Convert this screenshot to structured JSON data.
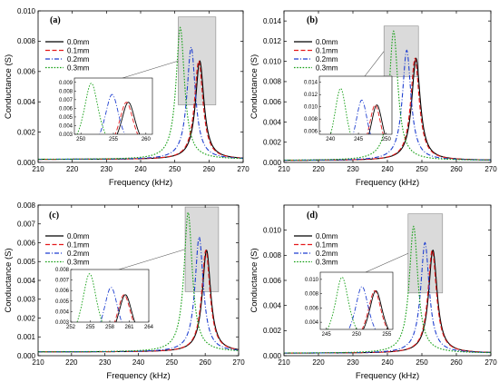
{
  "figure": {
    "xlabel": "Frequency (kHz)",
    "ylabel": "Conductance (S)",
    "colors": {
      "0.0mm": "#000000",
      "0.1mm": "#e41a1c",
      "0.2mm": "#1f3fd0",
      "0.3mm": "#16a016",
      "zoom_box": "#d3d3d3"
    }
  },
  "chart_data": [
    {
      "type": "line",
      "panel_label": "(a)",
      "xlabel": "Frequency (kHz)",
      "ylabel": "Conductance (S)",
      "xlim": [
        210,
        270
      ],
      "ylim": [
        0,
        0.01
      ],
      "xticks": [
        210,
        220,
        230,
        240,
        250,
        260,
        270
      ],
      "yticks": [
        0.0,
        0.002,
        0.004,
        0.006,
        0.008,
        0.01
      ],
      "ytick_labels": [
        "0.000",
        "0.002",
        "0.004",
        "0.006",
        "0.008",
        "0.010"
      ],
      "series": [
        {
          "name": "0.0mm",
          "style": "solid",
          "peak_x": 257.3,
          "peak_y": 0.0067,
          "width": 1.5,
          "base": 0.0002
        },
        {
          "name": "0.1mm",
          "style": "dash",
          "peak_x": 257.0,
          "peak_y": 0.0067,
          "width": 1.5,
          "base": 0.0002
        },
        {
          "name": "0.2mm",
          "style": "dashdot",
          "peak_x": 254.8,
          "peak_y": 0.0076,
          "width": 1.5,
          "base": 0.0002
        },
        {
          "name": "0.3mm",
          "style": "dot",
          "peak_x": 251.6,
          "peak_y": 0.0089,
          "width": 1.5,
          "base": 0.0002
        }
      ],
      "zoom_region": {
        "x": [
          251,
          262
        ],
        "y": [
          0.0038,
          0.0096
        ]
      },
      "inset": {
        "xlim": [
          249,
          261
        ],
        "ylim": [
          0.003,
          0.0095
        ],
        "xticks": [
          250,
          255,
          260
        ],
        "yticks": [
          0.003,
          0.004,
          0.005,
          0.006,
          0.007,
          0.008,
          0.009
        ],
        "ytick_labels": [
          "0.003",
          "0.004",
          "0.005",
          "0.006",
          "0.007",
          "0.008",
          "0.009"
        ]
      }
    },
    {
      "type": "line",
      "panel_label": "(b)",
      "xlabel": "Frequency (kHz)",
      "ylabel": "Conductance (S)",
      "xlim": [
        210,
        270
      ],
      "ylim": [
        0,
        0.015
      ],
      "xticks": [
        210,
        220,
        230,
        240,
        250,
        260,
        270
      ],
      "yticks": [
        0.0,
        0.002,
        0.004,
        0.006,
        0.008,
        0.01,
        0.012,
        0.014
      ],
      "ytick_labels": [
        "0.000",
        "0.002",
        "0.004",
        "0.006",
        "0.008",
        "0.010",
        "0.012",
        "0.014"
      ],
      "series": [
        {
          "name": "0.0mm",
          "style": "solid",
          "peak_x": 248.3,
          "peak_y": 0.0103,
          "width": 1.5,
          "base": 0.0002
        },
        {
          "name": "0.1mm",
          "style": "dash",
          "peak_x": 248.0,
          "peak_y": 0.0103,
          "width": 1.5,
          "base": 0.0002
        },
        {
          "name": "0.2mm",
          "style": "dashdot",
          "peak_x": 245.6,
          "peak_y": 0.0111,
          "width": 1.5,
          "base": 0.0002
        },
        {
          "name": "0.3mm",
          "style": "dot",
          "peak_x": 241.8,
          "peak_y": 0.013,
          "width": 1.5,
          "base": 0.0002
        }
      ],
      "zoom_region": {
        "x": [
          239,
          249
        ],
        "y": [
          0.0085,
          0.0135
        ]
      },
      "inset": {
        "xlim": [
          238,
          251
        ],
        "ylim": [
          0.0055,
          0.015
        ],
        "xticks": [
          240,
          245,
          250
        ],
        "yticks": [
          0.006,
          0.008,
          0.01,
          0.012,
          0.014
        ],
        "ytick_labels": [
          "0.006",
          "0.008",
          "0.010",
          "0.012",
          "0.014"
        ]
      }
    },
    {
      "type": "line",
      "panel_label": "(c)",
      "xlabel": "Frequency (kHz)",
      "ylabel": "Conductance (S)",
      "xlim": [
        210,
        270
      ],
      "ylim": [
        0,
        0.008
      ],
      "xticks": [
        210,
        220,
        230,
        240,
        250,
        260,
        270
      ],
      "yticks": [
        0.0,
        0.001,
        0.002,
        0.003,
        0.004,
        0.005,
        0.006,
        0.007,
        0.008
      ],
      "ytick_labels": [
        "0.000",
        "0.001",
        "0.002",
        "0.003",
        "0.004",
        "0.005",
        "0.006",
        "0.007",
        "0.008"
      ],
      "series": [
        {
          "name": "0.0mm",
          "style": "solid",
          "peak_x": 260.4,
          "peak_y": 0.0056,
          "width": 1.5,
          "base": 0.0002
        },
        {
          "name": "0.1mm",
          "style": "dash",
          "peak_x": 260.2,
          "peak_y": 0.0056,
          "width": 1.5,
          "base": 0.0002
        },
        {
          "name": "0.2mm",
          "style": "dashdot",
          "peak_x": 258.2,
          "peak_y": 0.0063,
          "width": 1.5,
          "base": 0.0002
        },
        {
          "name": "0.3mm",
          "style": "dot",
          "peak_x": 254.9,
          "peak_y": 0.0076,
          "width": 1.5,
          "base": 0.0002
        }
      ],
      "zoom_region": {
        "x": [
          254,
          264
        ],
        "y": [
          0.0034,
          0.0079
        ]
      },
      "inset": {
        "xlim": [
          252,
          264
        ],
        "ylim": [
          0.003,
          0.008
        ],
        "xticks": [
          252,
          255,
          258,
          261,
          264
        ],
        "yticks": [
          0.003,
          0.004,
          0.005,
          0.006,
          0.007,
          0.008
        ],
        "ytick_labels": [
          "0.003",
          "0.004",
          "0.005",
          "0.006",
          "0.007",
          "0.008"
        ]
      }
    },
    {
      "type": "line",
      "panel_label": "(d)",
      "xlabel": "Frequency (kHz)",
      "ylabel": "Conductance (S)",
      "xlim": [
        210,
        270
      ],
      "ylim": [
        0,
        0.012
      ],
      "xticks": [
        210,
        220,
        230,
        240,
        250,
        260,
        270
      ],
      "yticks": [
        0.0,
        0.002,
        0.004,
        0.006,
        0.008,
        0.01
      ],
      "ytick_labels": [
        "0.000",
        "0.002",
        "0.004",
        "0.006",
        "0.008",
        "0.010"
      ],
      "series": [
        {
          "name": "0.0mm",
          "style": "solid",
          "peak_x": 253.2,
          "peak_y": 0.0084,
          "width": 1.5,
          "base": 0.0002
        },
        {
          "name": "0.1mm",
          "style": "dash",
          "peak_x": 253.0,
          "peak_y": 0.0084,
          "width": 1.5,
          "base": 0.0002
        },
        {
          "name": "0.2mm",
          "style": "dashdot",
          "peak_x": 250.9,
          "peak_y": 0.009,
          "width": 1.5,
          "base": 0.0002
        },
        {
          "name": "0.3mm",
          "style": "dot",
          "peak_x": 247.6,
          "peak_y": 0.0103,
          "width": 1.5,
          "base": 0.0002
        }
      ],
      "zoom_region": {
        "x": [
          246,
          256
        ],
        "y": [
          0.005,
          0.0113
        ]
      },
      "inset": {
        "xlim": [
          244,
          256
        ],
        "ylim": [
          0.003,
          0.011
        ],
        "xticks": [
          245,
          250,
          255
        ],
        "yticks": [
          0.004,
          0.006,
          0.008,
          0.01
        ],
        "ytick_labels": [
          "0.004",
          "0.006",
          "0.008",
          "0.010"
        ]
      }
    }
  ]
}
